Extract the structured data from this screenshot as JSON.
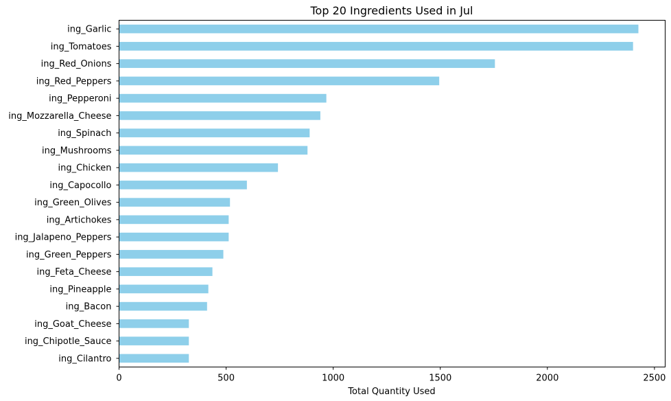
{
  "chart_data": {
    "type": "bar",
    "orientation": "horizontal",
    "title": "Top 20 Ingredients Used in Jul",
    "xlabel": "Total Quantity Used",
    "ylabel": "",
    "xlim": [
      0,
      2550
    ],
    "xticks": [
      0,
      500,
      1000,
      1500,
      2000,
      2500
    ],
    "grid": false,
    "bar_color": "#8ecfea",
    "categories": [
      "ing_Garlic",
      "ing_Tomatoes",
      "ing_Red_Onions",
      "ing_Red_Peppers",
      "ing_Pepperoni",
      "ing_Mozzarella_Cheese",
      "ing_Spinach",
      "ing_Mushrooms",
      "ing_Chicken",
      "ing_Capocollo",
      "ing_Green_Olives",
      "ing_Artichokes",
      "ing_Jalapeno_Peppers",
      "ing_Green_Peppers",
      "ing_Feta_Cheese",
      "ing_Pineapple",
      "ing_Bacon",
      "ing_Goat_Cheese",
      "ing_Chipotle_Sauce",
      "ing_Cilantro"
    ],
    "values": [
      2425,
      2400,
      1755,
      1495,
      968,
      940,
      890,
      880,
      742,
      597,
      518,
      512,
      512,
      487,
      436,
      417,
      411,
      326,
      326,
      326
    ]
  }
}
